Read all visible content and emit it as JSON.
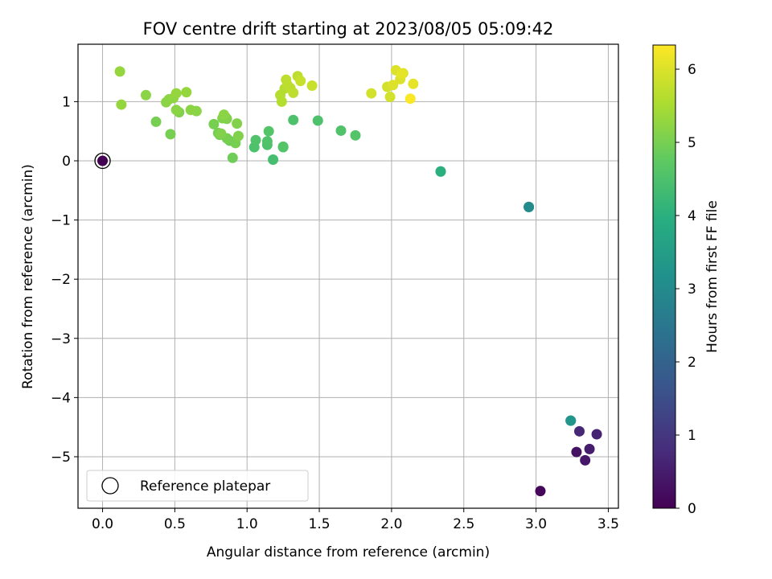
{
  "chart_data": {
    "type": "scatter",
    "title": "FOV centre drift starting at 2023/08/05 05:09:42",
    "xlabel": "Angular distance from reference (arcmin)",
    "ylabel": "Rotation from reference (arcmin)",
    "xlim": [
      -0.17,
      3.57
    ],
    "ylim": [
      -5.87,
      1.97
    ],
    "xticks": [
      0.0,
      0.5,
      1.0,
      1.5,
      2.0,
      2.5,
      3.0,
      3.5
    ],
    "xtick_labels": [
      "0.0",
      "0.5",
      "1.0",
      "1.5",
      "2.0",
      "2.5",
      "3.0",
      "3.5"
    ],
    "yticks": [
      -5,
      -4,
      -3,
      -2,
      -1,
      0,
      1
    ],
    "ytick_labels": [
      "−5",
      "−4",
      "−3",
      "−2",
      "−1",
      "0",
      "1"
    ],
    "grid": true,
    "legend": {
      "placement": "lower-left",
      "entries": [
        "Reference platepar"
      ]
    },
    "colorbar": {
      "label": "Hours from first FF file",
      "colormap": "viridis",
      "range": [
        0,
        6.33
      ],
      "ticks": [
        0,
        1,
        2,
        3,
        4,
        5,
        6
      ],
      "tick_labels": [
        "0",
        "1",
        "2",
        "3",
        "4",
        "5",
        "6"
      ]
    },
    "reference_point": {
      "x": 0.0,
      "y": 0.0
    },
    "series": [
      {
        "x": [
          0.0,
          3.03,
          3.28,
          3.34,
          3.37,
          3.42,
          3.3,
          3.24,
          3.24,
          2.95,
          2.95,
          2.34,
          2.34,
          1.18,
          1.25,
          1.05,
          1.14,
          1.14,
          1.06,
          1.15,
          1.25,
          1.32,
          1.49,
          1.65,
          1.75,
          0.9,
          0.88,
          0.92,
          0.86,
          0.81,
          0.8,
          0.77,
          0.94,
          0.84,
          0.93,
          0.85,
          0.86,
          0.83,
          0.82,
          0.84,
          0.37,
          0.47,
          0.53,
          0.51,
          0.44,
          0.46,
          0.49,
          0.51,
          0.61,
          0.65,
          0.58,
          0.3,
          0.13,
          0.12,
          1.24,
          1.23,
          1.26,
          1.28,
          1.3,
          1.27,
          1.32,
          1.35,
          1.37,
          1.45,
          1.86,
          1.97,
          1.99,
          2.01,
          2.03,
          2.06,
          2.08,
          2.07,
          2.13,
          2.15
        ],
        "y": [
          0.0,
          -5.58,
          -4.92,
          -5.06,
          -4.87,
          -4.62,
          -4.57,
          -4.39,
          -4.39,
          -0.78,
          -0.78,
          -0.18,
          -0.18,
          0.02,
          0.23,
          0.23,
          0.27,
          0.33,
          0.35,
          0.5,
          0.24,
          0.69,
          0.68,
          0.51,
          0.43,
          0.05,
          0.34,
          0.3,
          0.38,
          0.44,
          0.47,
          0.62,
          0.42,
          0.74,
          0.63,
          0.74,
          0.71,
          0.72,
          0.46,
          0.78,
          0.66,
          0.45,
          0.82,
          0.86,
          0.99,
          1.04,
          1.06,
          1.14,
          0.86,
          0.84,
          1.16,
          1.11,
          0.95,
          1.51,
          1.0,
          1.11,
          1.22,
          1.28,
          1.23,
          1.37,
          1.15,
          1.43,
          1.35,
          1.27,
          1.14,
          1.25,
          1.08,
          1.28,
          1.53,
          1.38,
          1.48,
          1.47,
          1.05,
          1.3
        ],
        "hours": [
          0.0,
          0.1,
          0.3,
          0.4,
          0.5,
          0.6,
          0.7,
          3.2,
          3.3,
          2.9,
          3.0,
          3.9,
          4.0,
          4.4,
          4.45,
          4.5,
          4.5,
          4.55,
          4.55,
          4.6,
          4.6,
          4.5,
          4.5,
          4.55,
          4.6,
          4.9,
          4.9,
          5.0,
          5.0,
          5.0,
          5.0,
          5.0,
          5.1,
          5.1,
          5.1,
          5.1,
          5.1,
          5.1,
          5.1,
          5.2,
          5.0,
          5.0,
          5.1,
          5.2,
          5.2,
          5.2,
          5.25,
          5.3,
          5.2,
          5.2,
          5.3,
          5.2,
          5.3,
          5.3,
          5.6,
          5.6,
          5.6,
          5.7,
          5.7,
          5.7,
          5.7,
          5.7,
          5.8,
          5.8,
          5.9,
          5.9,
          5.9,
          6.0,
          6.0,
          6.0,
          6.0,
          6.1,
          6.3,
          6.1
        ]
      }
    ]
  }
}
